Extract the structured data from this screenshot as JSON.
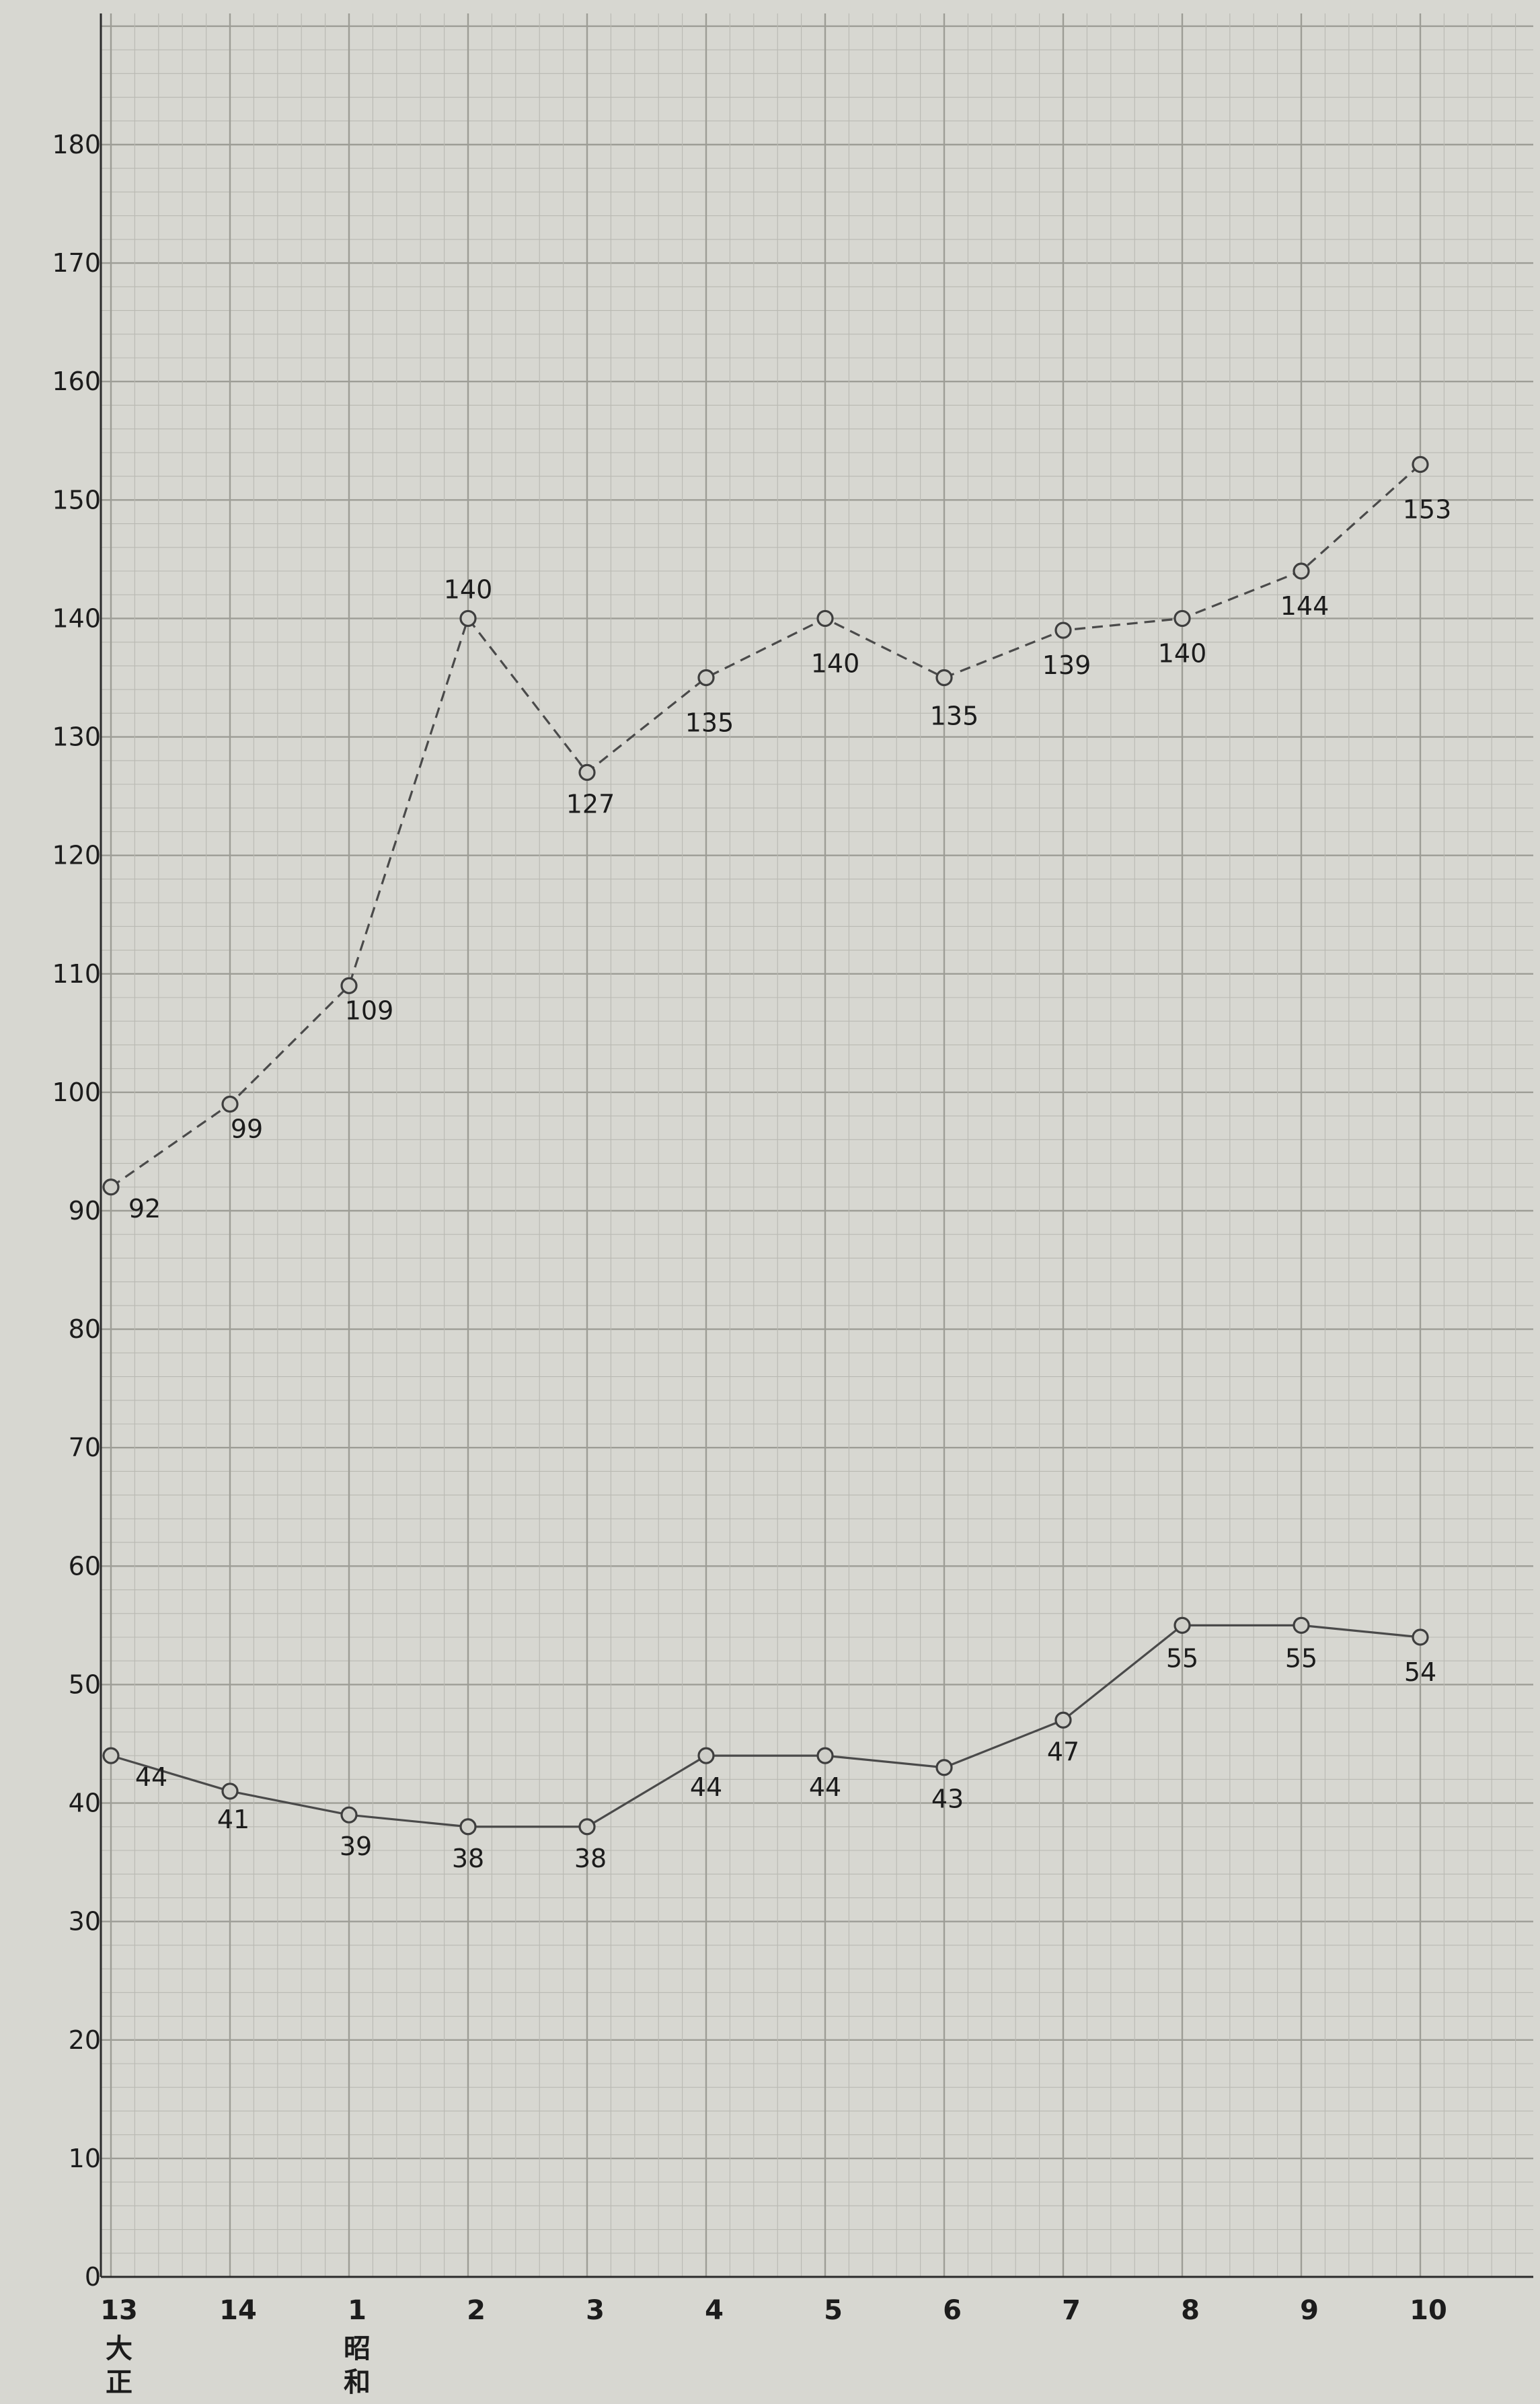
{
  "chart_data": {
    "type": "line",
    "title": "",
    "xlabel": "",
    "ylabel": "",
    "categories": [
      "13",
      "14",
      "1",
      "2",
      "3",
      "4",
      "5",
      "6",
      "7",
      "8",
      "9",
      "10"
    ],
    "era_labels": [
      {
        "category_index": 0,
        "chars": [
          "大",
          "正"
        ]
      },
      {
        "category_index": 2,
        "chars": [
          "昭",
          "和"
        ]
      }
    ],
    "y_ticks": [
      0,
      10,
      20,
      30,
      40,
      50,
      60,
      70,
      80,
      90,
      100,
      110,
      120,
      130,
      140,
      150,
      160,
      170,
      180
    ],
    "y_tick_labels": [
      "0",
      "10",
      "20",
      "30",
      "40",
      "50",
      "60",
      "70",
      "80",
      "90",
      "100",
      "110",
      "120",
      "130",
      "140",
      "150",
      "160",
      "170",
      "180"
    ],
    "ylim": [
      0,
      180
    ],
    "grid": true,
    "legend": "none",
    "series": [
      {
        "line_style": "dashed",
        "values": [
          92,
          99,
          109,
          140,
          127,
          135,
          140,
          135,
          139,
          140,
          144,
          153
        ],
        "labels": [
          "92",
          "99",
          "109",
          "140",
          "127",
          "135",
          "140",
          "135",
          "139",
          "140",
          "144",
          "153"
        ]
      },
      {
        "line_style": "solid",
        "values": [
          44,
          41,
          39,
          38,
          38,
          44,
          44,
          43,
          47,
          55,
          55,
          54
        ],
        "labels": [
          "44",
          "41",
          "39",
          "38",
          "38",
          "44",
          "44",
          "43",
          "47",
          "55",
          "55",
          "54"
        ]
      }
    ],
    "colors": {
      "paper": "#d7d7d1",
      "grid_fine": "#b9b9b2",
      "grid_major": "#9d9d96",
      "axis": "#2a2a2a",
      "line": "#4a4a4a",
      "marker_fill": "#cfcfc9",
      "text": "#1c1c1c"
    }
  }
}
